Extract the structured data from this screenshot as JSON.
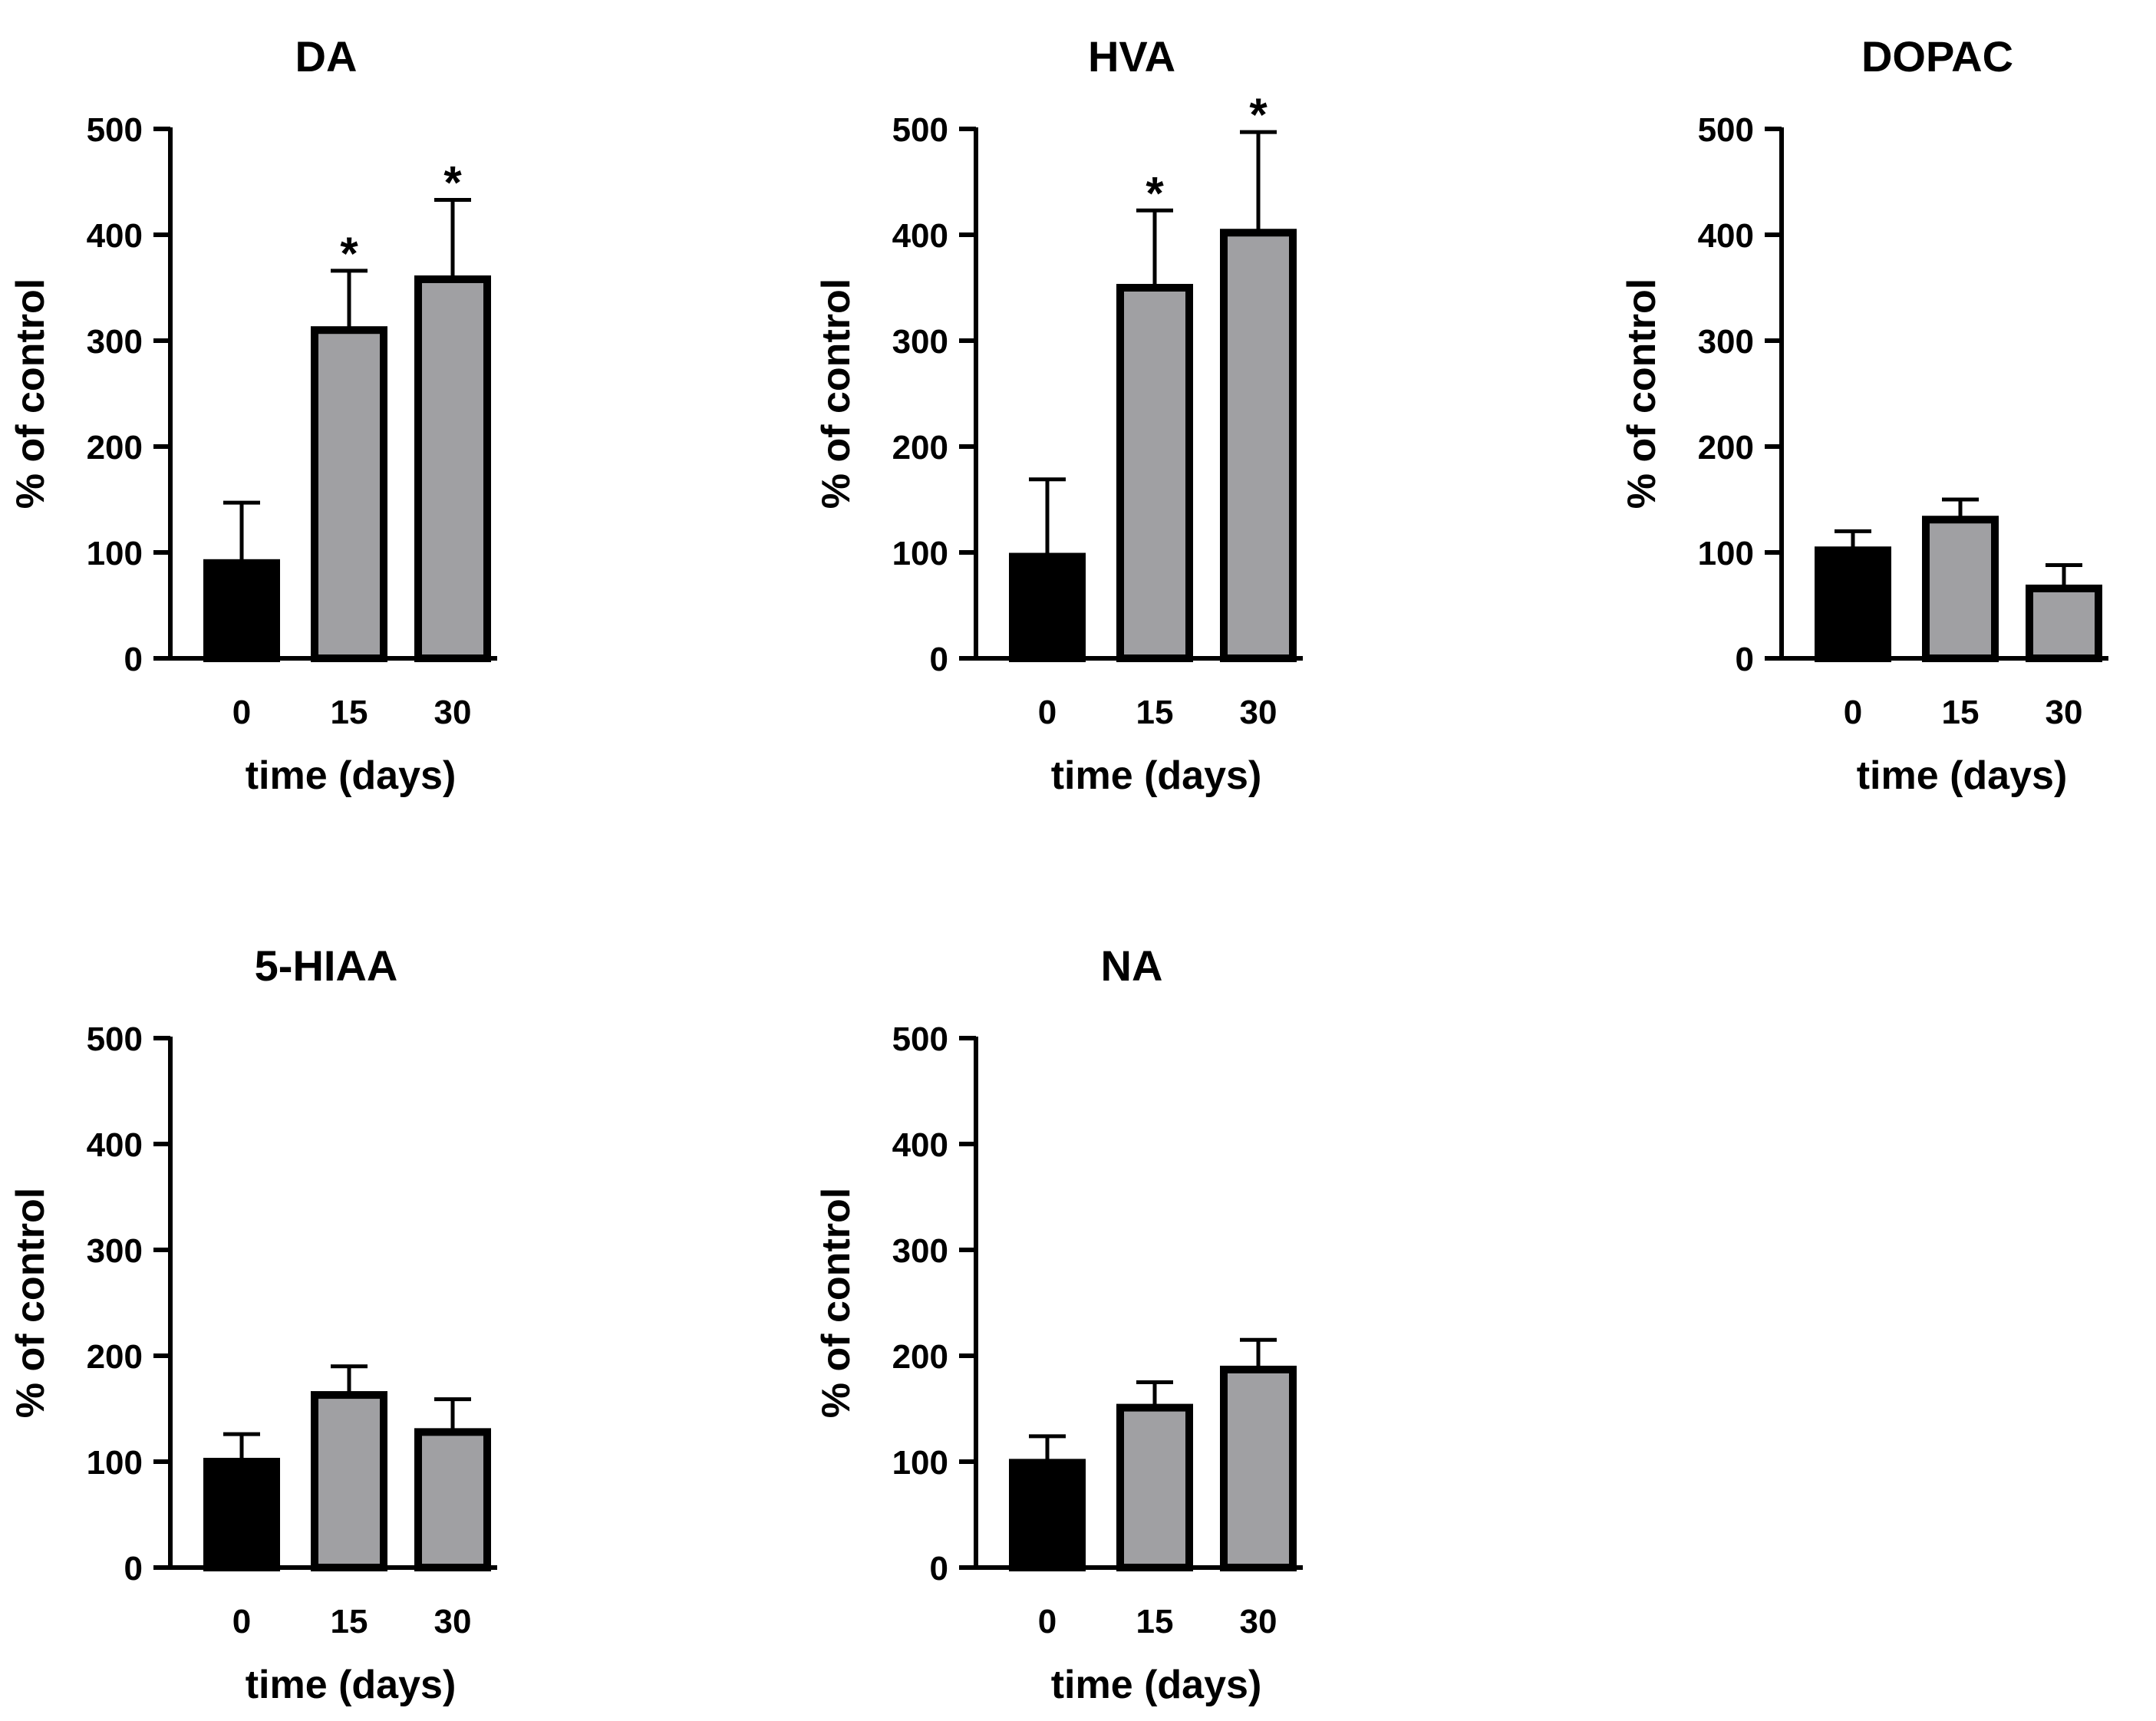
{
  "chart_data": [
    {
      "type": "bar",
      "title": "DA",
      "xlabel": "time (days)",
      "ylabel": "% of control",
      "ylim": [
        0,
        500
      ],
      "yticks": [
        "0",
        "100",
        "200",
        "300",
        "400",
        "500"
      ],
      "categories": [
        "0",
        "15",
        "30"
      ],
      "values": [
        90,
        310,
        358
      ],
      "errors": [
        57,
        56,
        75
      ],
      "significance": [
        "",
        "*",
        "*"
      ],
      "colors": [
        "#000000",
        "#a0a0a3",
        "#a0a0a3"
      ]
    },
    {
      "type": "bar",
      "title": "HVA",
      "xlabel": "time (days)",
      "ylabel": "% of control",
      "ylim": [
        0,
        500
      ],
      "yticks": [
        "0",
        "100",
        "200",
        "300",
        "400",
        "500"
      ],
      "categories": [
        "0",
        "15",
        "30"
      ],
      "values": [
        96,
        350,
        402
      ],
      "errors": [
        73,
        73,
        95
      ],
      "significance": [
        "",
        "*",
        "*"
      ],
      "colors": [
        "#000000",
        "#a0a0a3",
        "#a0a0a3"
      ]
    },
    {
      "type": "bar",
      "title": "DOPAC",
      "xlabel": "time (days)",
      "ylabel": "% of control",
      "ylim": [
        0,
        500
      ],
      "yticks": [
        "0",
        "100",
        "200",
        "300",
        "400",
        "500"
      ],
      "categories": [
        "0",
        "15",
        "30"
      ],
      "values": [
        102,
        131,
        66
      ],
      "errors": [
        18,
        19,
        22
      ],
      "significance": [
        "",
        "",
        ""
      ],
      "colors": [
        "#000000",
        "#a0a0a3",
        "#a0a0a3"
      ]
    },
    {
      "type": "bar",
      "title": "5-HIAA",
      "xlabel": "time (days)",
      "ylabel": "% of control",
      "ylim": [
        0,
        500
      ],
      "yticks": [
        "0",
        "100",
        "200",
        "300",
        "400",
        "500"
      ],
      "categories": [
        "0",
        "15",
        "30"
      ],
      "values": [
        100,
        163,
        128
      ],
      "errors": [
        26,
        27,
        31
      ],
      "significance": [
        "",
        "",
        ""
      ],
      "colors": [
        "#000000",
        "#a0a0a3",
        "#a0a0a3"
      ]
    },
    {
      "type": "bar",
      "title": "NA",
      "xlabel": "time (days)",
      "ylabel": "% of control",
      "ylim": [
        0,
        500
      ],
      "yticks": [
        "0",
        "100",
        "200",
        "300",
        "400",
        "500"
      ],
      "categories": [
        "0",
        "15",
        "30"
      ],
      "values": [
        99,
        151,
        187
      ],
      "errors": [
        25,
        24,
        28
      ],
      "significance": [
        "",
        "",
        ""
      ],
      "colors": [
        "#000000",
        "#a0a0a3",
        "#a0a0a3"
      ]
    }
  ]
}
